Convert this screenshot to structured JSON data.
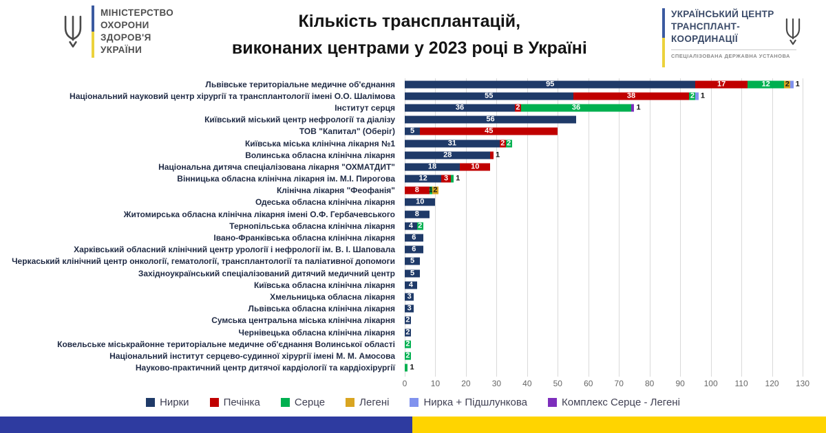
{
  "header": {
    "ministry_logo": {
      "lines": [
        "МІНІСТЕРСТВО",
        "ОХОРОНИ",
        "ЗДОРОВ'Я",
        "УКРАЇНИ"
      ]
    },
    "title_line1": "Кількість трансплантацій,",
    "title_line2": "виконаних центрами у 2023 році в Україні",
    "uctc_logo": {
      "lines": [
        "УКРАЇНСЬКИЙ ЦЕНТР",
        "ТРАНСПЛАНТ-",
        "КООРДИНАЦІЇ"
      ],
      "subtitle": "СПЕЦІАЛІЗОВАНА ДЕРЖАВНА УСТАНОВА"
    }
  },
  "chart_data": {
    "type": "bar",
    "orientation": "horizontal-stacked",
    "title": "Кількість трансплантацій, виконаних центрами у 2023 році в Україні",
    "xlabel": "",
    "ylabel": "",
    "xlim": [
      0,
      130
    ],
    "xticks": [
      0,
      10,
      20,
      30,
      40,
      50,
      60,
      70,
      80,
      90,
      100,
      110,
      120,
      130
    ],
    "grid": true,
    "legend_position": "bottom",
    "categories": [
      "Львівське територіальне медичне об'єднання",
      "Національний науковий центр хірургії та трансплантології імені О.О. Шалімова",
      "Інститут серця",
      "Київський  міський центр нефрології та діалізу",
      "ТОВ \"Капитал\" (Оберіг)",
      "Київська міська клінічна лікарня №1",
      "Волинська обласна клінічна лікарня",
      "Національна дитяча спеціалізована лікарня \"ОХМАТДИТ\"",
      "Вінницька обласна клінічна лікарня ім. М.І. Пирогова",
      "Клінічна лікарня \"Феофанія\"",
      "Одеська обласна клінічна лікарня",
      "Житомирська обласна клінічна лікарня імені О.Ф. Гербачевського",
      "Тернопільська обласна клінічна лікарня",
      "Івано-Франківська обласна клінічна лікарня",
      "Харківський  обласний клінічний центр урології і нефрології ім. В. І. Шаповала",
      "Черкаський клінічний центр онкології, гематології, трансплантології та паліативної допомоги",
      "Західноукраїнський спеціалізований дитячий медичний центр",
      "Київська обласна клінічна лікарня",
      "Хмельницька обласна лікарня",
      "Львівська  обласна клінічна лікарня",
      "Сумська центральна міська клінічна лікарня",
      "Чернівецька обласна клінічна лікарня",
      "Ковельське міськрайонне територіальне медичне об'єднання Волинської області",
      "Національний інститут серцево-судинної хірургії імені М. М. Амосова",
      "Науково-практичний центр дитячої кардіології та кардіохірургії"
    ],
    "series": [
      {
        "name": "Нирки",
        "color": "#1f3a68",
        "label_color": "#ffffff",
        "values": [
          95,
          55,
          36,
          56,
          5,
          31,
          28,
          18,
          12,
          0,
          10,
          8,
          4,
          6,
          6,
          5,
          5,
          4,
          3,
          3,
          2,
          2,
          0,
          0,
          0
        ]
      },
      {
        "name": "Печінка",
        "color": "#c00000",
        "label_color": "#ffffff",
        "values": [
          17,
          38,
          2,
          0,
          45,
          2,
          1,
          10,
          3,
          8,
          0,
          0,
          0,
          0,
          0,
          0,
          0,
          0,
          0,
          0,
          0,
          0,
          0,
          0,
          0
        ]
      },
      {
        "name": "Серце",
        "color": "#00b050",
        "label_color": "#ffffff",
        "values": [
          12,
          2,
          36,
          0,
          0,
          2,
          0,
          0,
          1,
          1,
          0,
          0,
          2,
          0,
          0,
          0,
          0,
          0,
          0,
          0,
          0,
          0,
          2,
          2,
          1
        ]
      },
      {
        "name": "Легені",
        "color": "#d9a521",
        "label_color": "#1a1a1a",
        "values": [
          2,
          0,
          0,
          0,
          0,
          0,
          0,
          0,
          0,
          2,
          0,
          0,
          0,
          0,
          0,
          0,
          0,
          0,
          0,
          0,
          0,
          0,
          0,
          0,
          0
        ]
      },
      {
        "name": "Нирка + Підшлункова",
        "color": "#8092ee",
        "label_color": "#ffffff",
        "values": [
          1,
          1,
          0,
          0,
          0,
          0,
          0,
          0,
          0,
          0,
          0,
          0,
          0,
          0,
          0,
          0,
          0,
          0,
          0,
          0,
          0,
          0,
          0,
          0,
          0
        ]
      },
      {
        "name": "Комплекс Серце - Легені",
        "color": "#7d2ebc",
        "label_color": "#ffffff",
        "values": [
          0,
          0,
          1,
          0,
          0,
          0,
          0,
          0,
          0,
          0,
          0,
          0,
          0,
          0,
          0,
          0,
          0,
          0,
          0,
          0,
          0,
          0,
          0,
          0,
          0
        ]
      }
    ]
  },
  "footer": {
    "left_color": "#2e3ba0",
    "right_color": "#ffd400"
  }
}
